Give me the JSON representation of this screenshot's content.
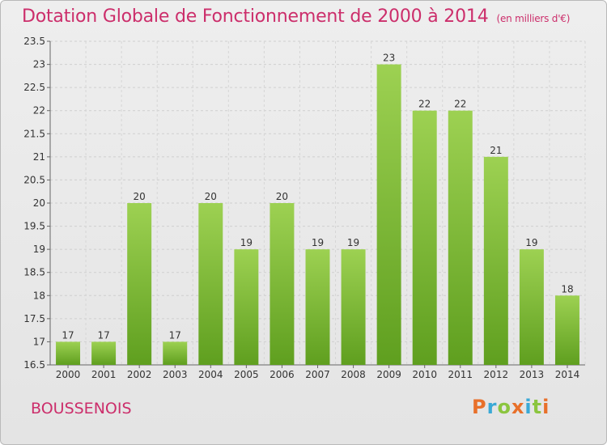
{
  "header": {
    "title": "Dotation Globale de Fonctionnement de 2000 à 2014",
    "subtitle": "(en milliers d'€)"
  },
  "footer": {
    "commune": "BOUSSENOIS",
    "logo": "Proxiti",
    "logo_colors": [
      "#e8702a",
      "#3aa9d6",
      "#8bc53f",
      "#e8702a",
      "#3aa9d6",
      "#8bc53f",
      "#e8702a"
    ]
  },
  "chart_data": {
    "type": "bar",
    "categories": [
      "2000",
      "2001",
      "2002",
      "2003",
      "2004",
      "2005",
      "2006",
      "2007",
      "2008",
      "2009",
      "2010",
      "2011",
      "2012",
      "2013",
      "2014"
    ],
    "values": [
      17,
      17,
      20,
      17,
      20,
      19,
      20,
      19,
      19,
      23,
      22,
      22,
      21,
      19,
      18
    ],
    "data_labels": [
      "17",
      "17",
      "20",
      "17",
      "20",
      "19",
      "20",
      "19",
      "19",
      "23",
      "22",
      "22",
      "21",
      "19",
      "18"
    ],
    "ylim": [
      16.5,
      23.5
    ],
    "yticks": [
      "16.5",
      "17",
      "17.5",
      "18",
      "18.5",
      "19",
      "19.5",
      "20",
      "20.5",
      "21",
      "21.5",
      "22",
      "22.5",
      "23",
      "23.5"
    ],
    "grid": true,
    "bar_color_top": "#9dd152",
    "bar_color_bottom": "#5f9f1f"
  }
}
